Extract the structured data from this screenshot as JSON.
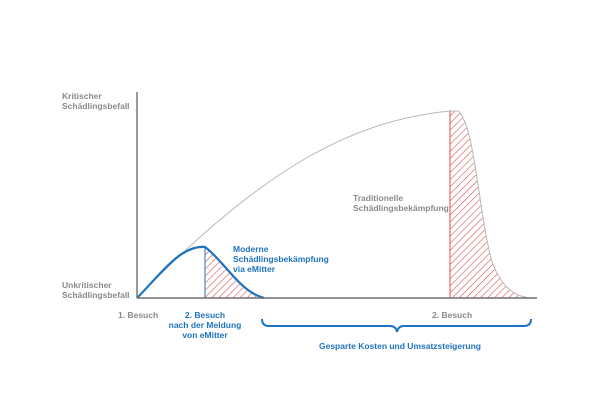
{
  "colors": {
    "axis": "#6f6f6f",
    "traditional_curve": "#b8b8b8",
    "modern_curve": "#1e73be",
    "hatch": "#d9534f",
    "label_gray": "#8a8a8a",
    "label_blue": "#1e73be"
  },
  "y_axis": {
    "top_label": "Kritischer\nSchädlingsbefall",
    "bottom_label": "Unkritischer\nSchädlingsbefall"
  },
  "x_axis": {
    "first_visit": "1. Besuch",
    "second_visit_modern": "2. Besuch\nnach der Meldung\nvon eMitter",
    "second_visit_traditional": "2. Besuch"
  },
  "series": {
    "modern": "Moderne\nSchädlingsbekämpfung\nvia eMitter",
    "traditional": "Traditionelle\nSchädlingsbekämpfung"
  },
  "savings_label": "Gesparte Kosten und Umsatzsteigerung"
}
